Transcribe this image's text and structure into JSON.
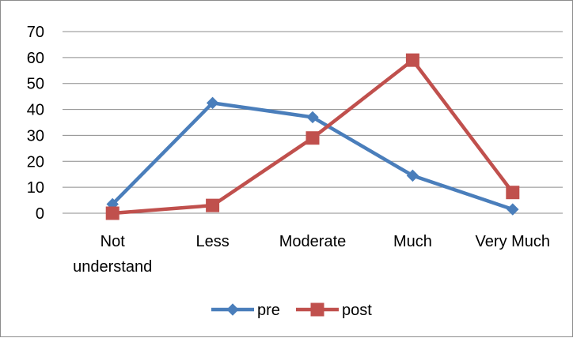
{
  "chart_data": {
    "type": "line",
    "categories": [
      [
        "Not",
        "understand"
      ],
      [
        "Less"
      ],
      [
        "Moderate"
      ],
      [
        "Much"
      ],
      [
        "Very Much"
      ]
    ],
    "ylim": [
      0,
      70
    ],
    "yticks": [
      0,
      10,
      20,
      30,
      40,
      50,
      60,
      70
    ],
    "grid": true,
    "legend_position": "bottom",
    "series": [
      {
        "name": "pre",
        "color": "#4a7ebb",
        "marker": "diamond",
        "values": [
          3.5,
          42.5,
          37,
          14.5,
          1.5
        ]
      },
      {
        "name": "post",
        "color": "#c0504d",
        "marker": "square",
        "values": [
          0,
          3,
          29,
          59,
          8
        ]
      }
    ]
  }
}
